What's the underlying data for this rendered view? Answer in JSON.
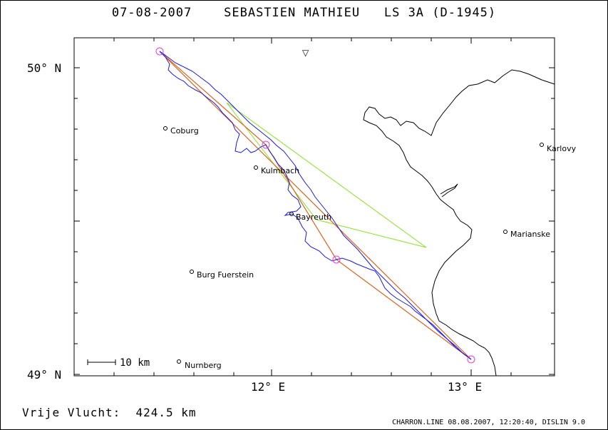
{
  "header": {
    "date": "07-08-2007",
    "pilot": "SEBASTIEN MATHIEU",
    "glider": "LS 3A (D-1945)"
  },
  "map": {
    "lat_labels": [
      "50° N",
      "49° N"
    ],
    "lon_labels": [
      "12° E",
      "13° E"
    ],
    "scale_label": "10 km",
    "north_marker": "▽",
    "towns": [
      "Coburg",
      "Kulmbach",
      "Bayreuth",
      "Burg Fuerstein",
      "Nurnberg",
      "Karlovy",
      "Marianske"
    ],
    "colors": {
      "track": "#1a1adc",
      "task": "#d9641e",
      "olc": "#8ae024",
      "turnpoint": "#e040e0",
      "border": "#000000"
    }
  },
  "stats": {
    "free_flight": "Vrije Vlucht:  424.5 km"
  },
  "footer": {
    "info": "CHARRON.LINE 08.08.2007, 12:20:40, DISLIN 9.0"
  }
}
